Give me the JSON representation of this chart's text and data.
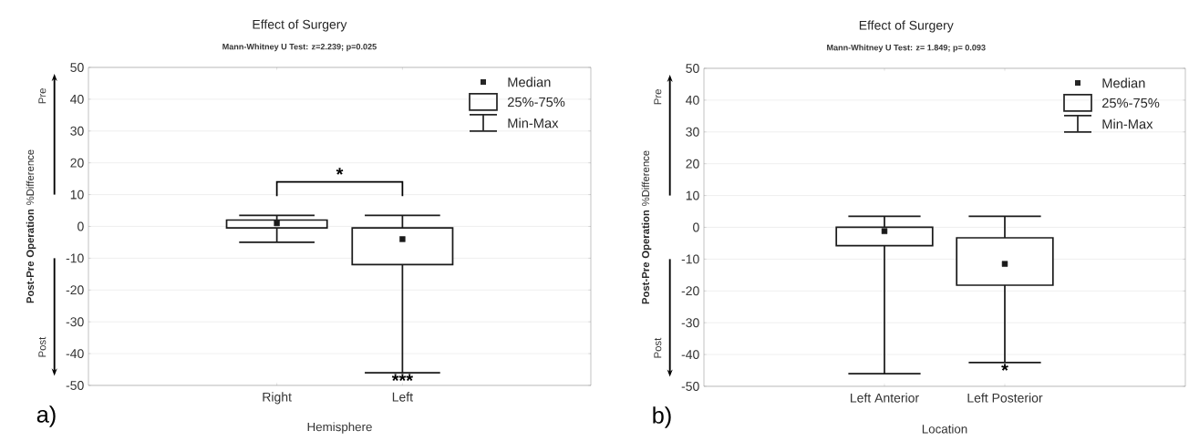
{
  "chart_data": [
    {
      "type": "box",
      "title": "Effect of Surgery",
      "subtitle": "Mann-Whitney U Test: z=2.239; p=0.025",
      "xlabel": "Hemisphere",
      "ylabel": "**Post-Pre Operation** %Difference",
      "categories": [
        "Right",
        "Left"
      ],
      "series": [
        {
          "color": "#1a1a1a",
          "boxes": [
            {
              "low": -5,
              "q1": -0.5,
              "median": 1,
              "q3": 2,
              "high": 3.5
            },
            {
              "low": -46,
              "q1": -12,
              "median": -4,
              "q3": -0.5,
              "high": 3.5
            }
          ]
        }
      ],
      "ylim": [
        -50,
        50
      ],
      "yticks": [
        -50,
        -40,
        -30,
        -20,
        -10,
        0,
        10,
        20,
        30,
        40,
        50
      ],
      "grid": "y",
      "marker": "square",
      "annotations": [
        "Median",
        "25%-75%",
        "Min-Max",
        "Pre",
        "Post",
        "a)",
        "*",
        "***"
      ]
    },
    {
      "type": "box",
      "title": "Effect of Surgery",
      "subtitle": "Mann-Whitney U Test: z= 1.849; p= 0.093",
      "xlabel": "Location",
      "ylabel": "**Post-Pre Operation** %Difference",
      "categories": [
        "Left Anterior",
        "Left Posterior"
      ],
      "series": [
        {
          "color": "#1a1a1a",
          "boxes": [
            {
              "low": -46,
              "q1": -5.8,
              "median": -1.2,
              "q3": 0,
              "high": 3.5
            },
            {
              "low": -42.5,
              "q1": -18.2,
              "median": -11.5,
              "q3": -3.3,
              "high": 3.5
            }
          ]
        }
      ],
      "ylim": [
        -50,
        50
      ],
      "yticks": [
        -50,
        -40,
        -30,
        -20,
        -10,
        0,
        10,
        20,
        30,
        40,
        50
      ],
      "grid": "y",
      "marker": "square",
      "annotations": [
        "Median",
        "25%-75%",
        "Min-Max",
        "Pre",
        "Post",
        "b)",
        "*"
      ]
    }
  ]
}
